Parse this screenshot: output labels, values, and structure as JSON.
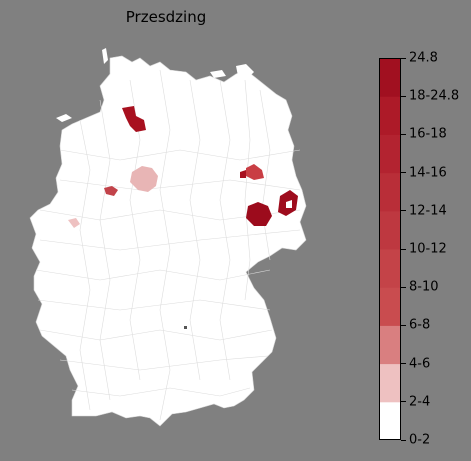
{
  "title": "Przesdzing",
  "map": {
    "land_color": "#ffffff",
    "boundary_color": "#d0d0d0",
    "background": "#808080"
  },
  "legend": {
    "labels": [
      "0-2",
      "2-4",
      "4-6",
      "6-8",
      "8-10",
      "10-12",
      "12-14",
      "14-16",
      "16-18",
      "18-24.8",
      "24.8"
    ],
    "colors": [
      "#ffffff",
      "#eec1c1",
      "#d97f80",
      "#c94c4f",
      "#c44348",
      "#be3840",
      "#b92e38",
      "#b32330",
      "#ad1a28",
      "#a11020",
      "#940719"
    ]
  },
  "highlighted_regions": [
    {
      "name": "north-hamburg-area",
      "color": "#a8101f"
    },
    {
      "name": "lower-saxony-central",
      "color": "#e8b5b5"
    },
    {
      "name": "bielefeld-area",
      "color": "#c2434a"
    },
    {
      "name": "west-small",
      "color": "#eec1c1"
    },
    {
      "name": "berlin-north",
      "color": "#c93e44"
    },
    {
      "name": "berlin-south",
      "color": "#9c0b1c"
    },
    {
      "name": "east-border",
      "color": "#9e0c1d"
    }
  ]
}
